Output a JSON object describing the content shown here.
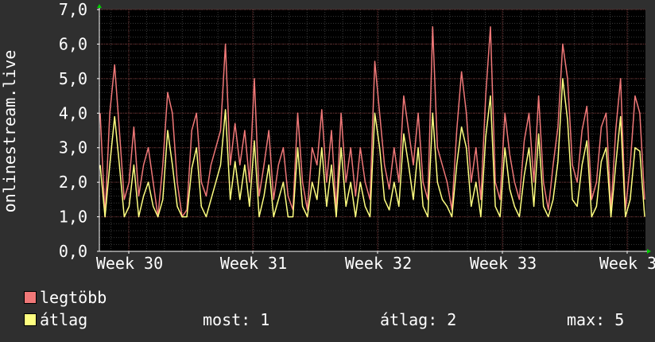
{
  "chart_data": {
    "type": "line",
    "ylabel": "onlinestream.live",
    "ylim": [
      0,
      7
    ],
    "yticks": [
      "0,0",
      "1,0",
      "2,0",
      "3,0",
      "4,0",
      "5,0",
      "6,0",
      "7,0"
    ],
    "xticks": [
      "Week 30",
      "Week 31",
      "Week 32",
      "Week 33",
      "Week 3"
    ],
    "x_range": [
      0,
      35
    ],
    "series": [
      {
        "name": "legtöbb",
        "color": "#f07878",
        "values": [
          4.0,
          1.0,
          4.0,
          5.4,
          3.5,
          1.5,
          2.0,
          3.6,
          1.6,
          2.5,
          3.0,
          2.0,
          1.0,
          2.5,
          4.6,
          4.0,
          2.0,
          1.0,
          1.2,
          3.5,
          4.0,
          2.0,
          1.6,
          2.5,
          3.0,
          3.5,
          6.0,
          2.5,
          3.7,
          2.5,
          3.5,
          2.0,
          5.0,
          1.6,
          2.5,
          3.5,
          1.5,
          2.5,
          3.0,
          1.6,
          1.2,
          4.0,
          2.0,
          1.2,
          3.0,
          2.5,
          4.1,
          2.0,
          3.5,
          1.2,
          4.0,
          2.0,
          3.0,
          1.6,
          3.0,
          2.0,
          1.5,
          5.5,
          4.0,
          2.5,
          1.8,
          3.0,
          2.0,
          4.5,
          3.5,
          2.5,
          4.0,
          2.0,
          1.5,
          6.5,
          3.0,
          2.5,
          2.0,
          1.2,
          3.5,
          5.2,
          4.0,
          2.0,
          3.0,
          1.5,
          4.5,
          6.5,
          2.0,
          1.5,
          4.0,
          2.8,
          2.0,
          1.5,
          3.2,
          4.0,
          2.0,
          4.5,
          2.0,
          1.2,
          2.5,
          3.6,
          6.0,
          5.0,
          2.5,
          2.0,
          3.5,
          4.2,
          1.5,
          2.0,
          3.6,
          4.0,
          1.2,
          3.5,
          5.0,
          1.2,
          2.5,
          4.5,
          4.0,
          1.5
        ],
        "legend_label": "legtöbb"
      },
      {
        "name": "átlag",
        "color": "#ffff80",
        "values": [
          2.5,
          1.0,
          2.5,
          3.9,
          2.5,
          1.0,
          1.3,
          2.5,
          1.0,
          1.6,
          2.0,
          1.3,
          1.0,
          1.5,
          3.5,
          2.5,
          1.3,
          1.0,
          1.0,
          2.4,
          3.0,
          1.3,
          1.0,
          1.5,
          2.0,
          2.5,
          4.1,
          1.5,
          2.6,
          1.5,
          2.5,
          1.3,
          3.2,
          1.0,
          1.6,
          2.5,
          1.0,
          1.5,
          2.0,
          1.0,
          1.0,
          3.0,
          1.3,
          1.0,
          2.0,
          1.5,
          3.0,
          1.3,
          2.5,
          1.0,
          3.0,
          1.3,
          2.0,
          1.0,
          2.0,
          1.3,
          1.0,
          4.0,
          3.0,
          1.5,
          1.2,
          2.0,
          1.3,
          3.4,
          2.5,
          1.5,
          3.0,
          1.3,
          1.0,
          4.0,
          2.0,
          1.5,
          1.3,
          1.0,
          2.5,
          3.6,
          3.0,
          1.3,
          2.0,
          1.0,
          3.3,
          4.5,
          1.3,
          1.0,
          3.0,
          1.8,
          1.3,
          1.0,
          2.2,
          3.0,
          1.3,
          3.4,
          1.3,
          1.0,
          1.5,
          2.6,
          5.0,
          3.8,
          1.5,
          1.3,
          2.5,
          3.2,
          1.0,
          1.3,
          2.6,
          3.0,
          1.0,
          2.5,
          3.9,
          1.0,
          1.5,
          3.0,
          2.9,
          1.0
        ],
        "legend_label": "átlag"
      }
    ],
    "grid": true,
    "legend_position": "bottom-left"
  },
  "legend": {
    "max_label": "legtöbb",
    "avg_label": "átlag",
    "stats": {
      "now": "most: 1",
      "avg": "átlag: 2",
      "max": "max: 5"
    }
  },
  "colors": {
    "background": "#2f2f2f",
    "canvas": "#000000",
    "major_grid": "#6e2c2c",
    "minor_grid": "#3a3a3a",
    "axis": "#ffffff",
    "arrow": "#00cc00"
  }
}
